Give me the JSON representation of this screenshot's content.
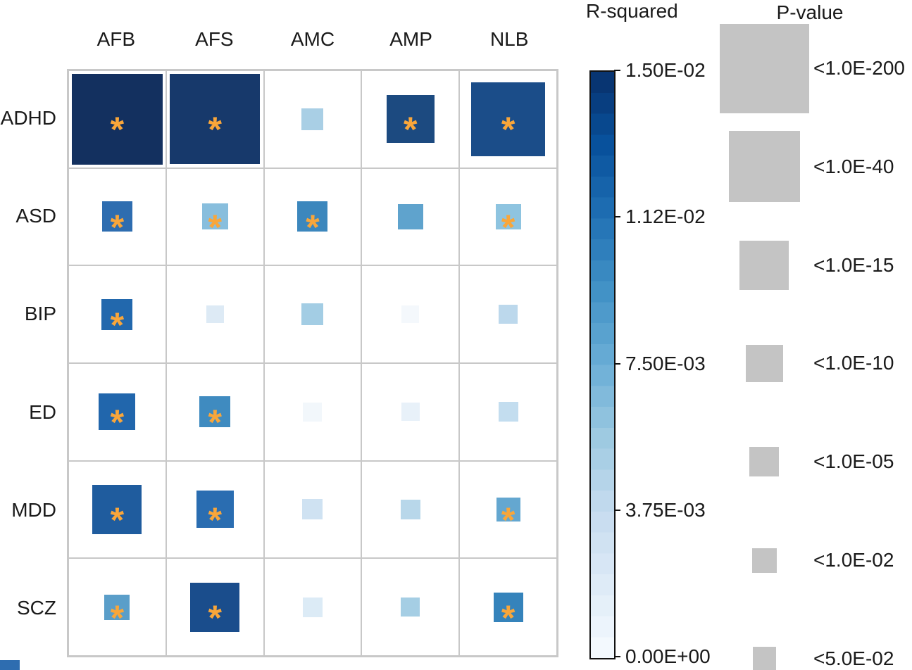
{
  "figure": {
    "matrix": {
      "columns": [
        "AFB",
        "AFS",
        "AMC",
        "AMP",
        "NLB"
      ],
      "rows": [
        "ADHD",
        "ASD",
        "BIP",
        "ED",
        "MDD",
        "SCZ"
      ],
      "asterisk_glyph": "*",
      "asterisk_color": "#f9a63a",
      "grid_color": "#c8c8c8",
      "cells": [
        [
          {
            "size": 129,
            "color": "#13305f",
            "sig": true,
            "p": "<1.0E-200"
          },
          {
            "size": 128,
            "color": "#17396b",
            "sig": true,
            "p": "<1.0E-200"
          },
          {
            "size": 31,
            "color": "#a9cfe5",
            "sig": false,
            "p": "<5.0E-02"
          },
          {
            "size": 68,
            "color": "#1c4a80",
            "sig": true,
            "p": "<1.0E-15"
          },
          {
            "size": 105,
            "color": "#1b4d89",
            "sig": true,
            "p": "<1.0E-40"
          }
        ],
        [
          {
            "size": 43,
            "color": "#2e6db0",
            "sig": true,
            "p": "<1.0E-05"
          },
          {
            "size": 37,
            "color": "#88bedd",
            "sig": true,
            "p": "<1.0E-02"
          },
          {
            "size": 43,
            "color": "#3c87bd",
            "sig": true,
            "p": "<1.0E-05"
          },
          {
            "size": 36,
            "color": "#5fa3cd",
            "sig": false,
            "p": "<1.0E-02"
          },
          {
            "size": 36,
            "color": "#8ec4e0",
            "sig": true,
            "p": "<1.0E-02"
          }
        ],
        [
          {
            "size": 44,
            "color": "#2268ad",
            "sig": true,
            "p": "<1.0E-05"
          },
          {
            "size": 25,
            "color": "#ddeaf5",
            "sig": false,
            "p": "≥5.0E-02"
          },
          {
            "size": 31,
            "color": "#a3cde4",
            "sig": false,
            "p": "<5.0E-02"
          },
          {
            "size": 25,
            "color": "#f4f8fc",
            "sig": false,
            "p": "≥5.0E-02"
          },
          {
            "size": 27,
            "color": "#bcd8ec",
            "sig": false,
            "p": "≥5.0E-02"
          }
        ],
        [
          {
            "size": 52,
            "color": "#2166ac",
            "sig": true,
            "p": "<1.0E-10"
          },
          {
            "size": 44,
            "color": "#3f8bc0",
            "sig": true,
            "p": "<1.0E-05"
          },
          {
            "size": 27,
            "color": "#f2f7fb",
            "sig": false,
            "p": "≥5.0E-02"
          },
          {
            "size": 26,
            "color": "#e8f1f9",
            "sig": false,
            "p": "≥5.0E-02"
          },
          {
            "size": 28,
            "color": "#c3ddef",
            "sig": false,
            "p": "≥5.0E-02"
          }
        ],
        [
          {
            "size": 70,
            "color": "#1f5c9e",
            "sig": true,
            "p": "<1.0E-15"
          },
          {
            "size": 53,
            "color": "#2a6db1",
            "sig": true,
            "p": "<1.0E-10"
          },
          {
            "size": 29,
            "color": "#cfe2f2",
            "sig": false,
            "p": "≥5.0E-02"
          },
          {
            "size": 28,
            "color": "#b8d7ea",
            "sig": false,
            "p": "≥5.0E-02"
          },
          {
            "size": 34,
            "color": "#64a7d0",
            "sig": true,
            "p": "<5.0E-02"
          }
        ],
        [
          {
            "size": 36,
            "color": "#5a9ec9",
            "sig": true,
            "p": "<1.0E-02"
          },
          {
            "size": 70,
            "color": "#1a4d8c",
            "sig": true,
            "p": "<1.0E-15"
          },
          {
            "size": 28,
            "color": "#dcebf6",
            "sig": false,
            "p": "≥5.0E-02"
          },
          {
            "size": 27,
            "color": "#a5cee4",
            "sig": false,
            "p": "≥5.0E-02"
          },
          {
            "size": 42,
            "color": "#3583bb",
            "sig": true,
            "p": "<1.0E-05"
          }
        ]
      ]
    },
    "colorbar": {
      "title": "R-squared",
      "tick_labels": [
        "1.50E-02",
        "1.12E-02",
        "7.50E-03",
        "3.75E-03",
        "0.00E+00"
      ],
      "anchors": [
        "#f7fbff",
        "#deebf7",
        "#c6dbef",
        "#9ecae1",
        "#6baed6",
        "#4292c6",
        "#2171b5",
        "#08519c",
        "#08306b"
      ],
      "steps": 28
    },
    "pvalue_legend": {
      "title": "P-value",
      "square_color": "#c4c4c4",
      "entries": [
        {
          "label": "<1.0E-200",
          "size": 127
        },
        {
          "label": "<1.0E-40",
          "size": 101
        },
        {
          "label": "<1.0E-15",
          "size": 70
        },
        {
          "label": "<1.0E-10",
          "size": 53
        },
        {
          "label": "<1.0E-05",
          "size": 42
        },
        {
          "label": "<1.0E-02",
          "size": 35
        },
        {
          "label": "<5.0E-02",
          "size": 33
        }
      ]
    }
  },
  "chart_data": {
    "type": "heatmap",
    "title": "",
    "x_categories": [
      "AFB",
      "AFS",
      "AMC",
      "AMP",
      "NLB"
    ],
    "y_categories": [
      "ADHD",
      "ASD",
      "BIP",
      "ED",
      "MDD",
      "SCZ"
    ],
    "color_variable": "R-squared",
    "size_variable": "P-value",
    "color_scale": {
      "min": 0.0,
      "max": 0.015,
      "tick_labels": [
        "1.50E-02",
        "1.12E-02",
        "7.50E-03",
        "3.75E-03",
        "0.00E+00"
      ],
      "palette": "Blues",
      "legend_position": "right"
    },
    "size_classes": [
      "<1.0E-200",
      "<1.0E-40",
      "<1.0E-15",
      "<1.0E-10",
      "<1.0E-05",
      "<1.0E-02",
      "<5.0E-02"
    ],
    "r_squared_estimates": [
      [
        0.0147,
        0.0141,
        0.0035,
        0.0122,
        0.012
      ],
      [
        0.01,
        0.0062,
        0.009,
        0.0075,
        0.0057
      ],
      [
        0.0105,
        0.0012,
        0.0038,
        0.0003,
        0.0028
      ],
      [
        0.0106,
        0.0088,
        0.0005,
        0.0009,
        0.0026
      ],
      [
        0.0113,
        0.0099,
        0.002,
        0.003,
        0.0073
      ],
      [
        0.0076,
        0.0125,
        0.0014,
        0.0037,
        0.0092
      ]
    ],
    "p_value_buckets": [
      [
        "<1.0E-200",
        "<1.0E-200",
        "<5.0E-02",
        "<1.0E-15",
        "<1.0E-40"
      ],
      [
        "<1.0E-05",
        "<1.0E-02",
        "<1.0E-05",
        "<1.0E-02",
        "<1.0E-02"
      ],
      [
        "<1.0E-05",
        "≥5.0E-02",
        "<5.0E-02",
        "≥5.0E-02",
        "≥5.0E-02"
      ],
      [
        "<1.0E-10",
        "<1.0E-05",
        "≥5.0E-02",
        "≥5.0E-02",
        "≥5.0E-02"
      ],
      [
        "<1.0E-15",
        "<1.0E-10",
        "≥5.0E-02",
        "≥5.0E-02",
        "<5.0E-02"
      ],
      [
        "<1.0E-02",
        "<1.0E-15",
        "≥5.0E-02",
        "≥5.0E-02",
        "<1.0E-05"
      ]
    ],
    "significant_asterisk": [
      [
        true,
        true,
        false,
        true,
        true
      ],
      [
        true,
        true,
        true,
        false,
        true
      ],
      [
        true,
        false,
        false,
        false,
        false
      ],
      [
        true,
        true,
        false,
        false,
        false
      ],
      [
        true,
        true,
        false,
        false,
        true
      ],
      [
        true,
        true,
        false,
        false,
        true
      ]
    ]
  }
}
